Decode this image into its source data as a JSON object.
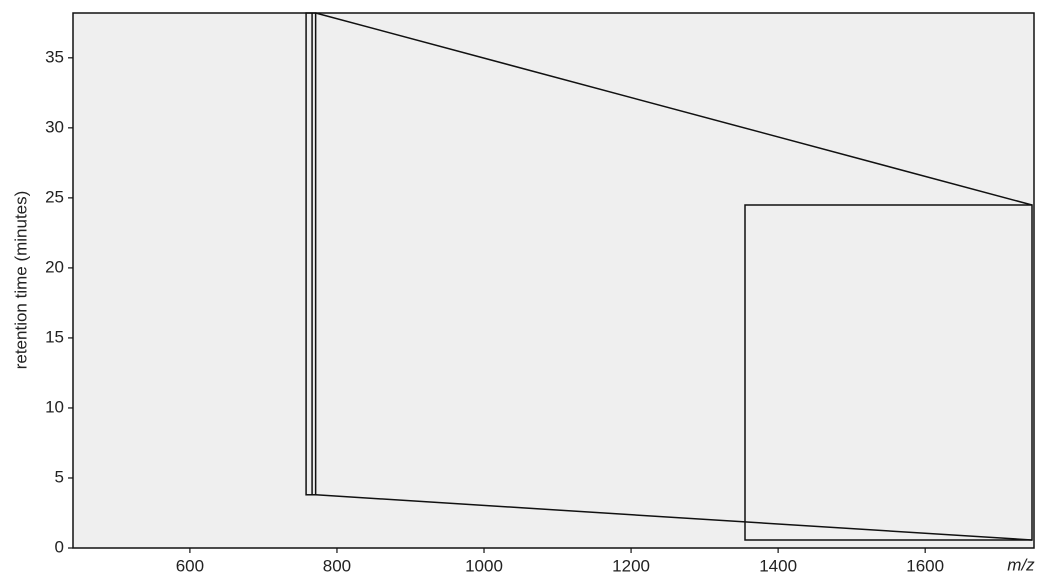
{
  "chart_data": {
    "type": "image",
    "x_label": "m/z",
    "y_label": "retention time (minutes)",
    "xlim": [
      441,
      1748
    ],
    "xticks": [
      600,
      800,
      1000,
      1200,
      1400,
      1600
    ],
    "ylim": [
      0,
      38.2
    ],
    "yticks": [
      0,
      5,
      10,
      15,
      20,
      25,
      30,
      35
    ],
    "zoom_region": {
      "xlim": [
        758,
        771
      ],
      "ylim": [
        3.8,
        38.2
      ]
    }
  }
}
